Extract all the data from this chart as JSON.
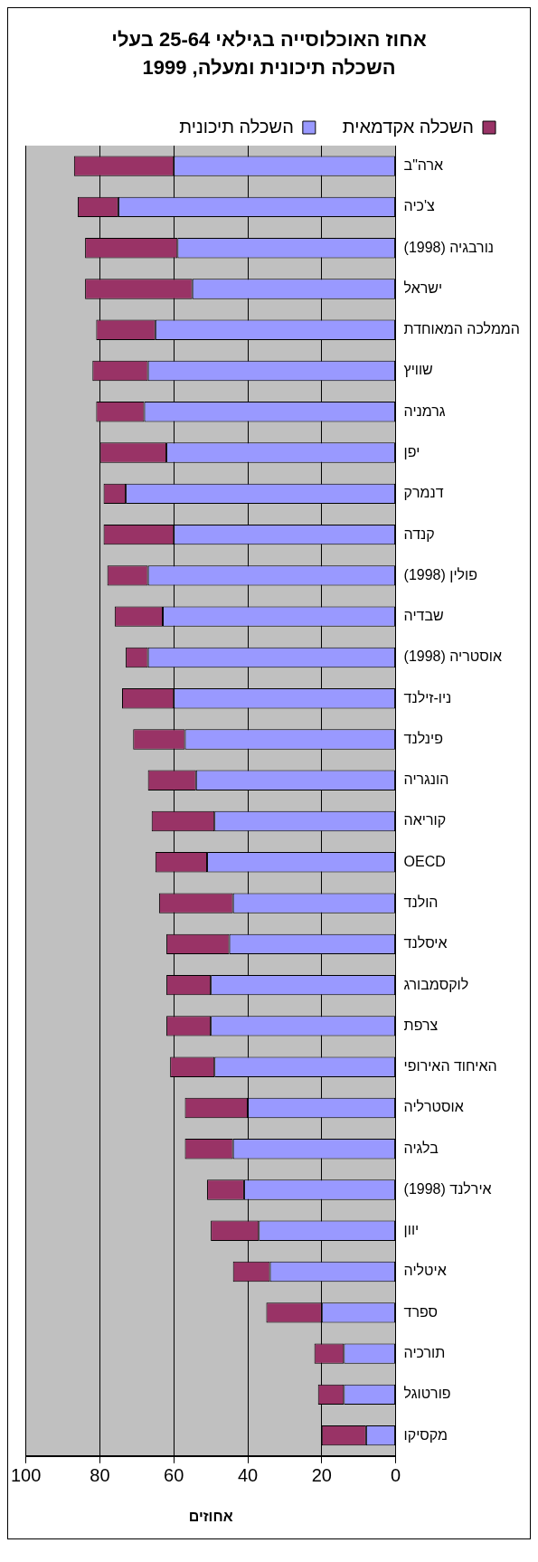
{
  "chart_data": {
    "type": "bar",
    "orientation": "horizontal",
    "stacked": true,
    "title": "אחוז האוכלוסייה בגילאי 25-64 בעלי השכלה תיכונית ומעלה, 1999",
    "xlabel": "אחוזים",
    "categories": [
      "ארה\"ב",
      "צ'כיה",
      "נורבגיה (1998)",
      "ישראל",
      "הממלכה המאוחדת",
      "שוויץ",
      "גרמניה",
      "יפן",
      "דנמרק",
      "קנדה",
      "פולין (1998)",
      "שבדיה",
      "אוסטריה (1998)",
      "ניו-זילנד",
      "פינלנד",
      "הונגריה",
      "קוריאה",
      "OECD",
      "הולנד",
      "איסלנד",
      "לוקסמבורג",
      "צרפת",
      "האיחוד האירופי",
      "אוסטרליה",
      "בלגיה",
      "אירלנד (1998)",
      "יוון",
      "איטליה",
      "ספרד",
      "תורכיה",
      "פורטוגל",
      "מקסיקו"
    ],
    "series": [
      {
        "name": "השכלה תיכונית",
        "color": "#9999ff",
        "values": [
          60,
          75,
          59,
          55,
          65,
          67,
          68,
          62,
          73,
          60,
          67,
          63,
          67,
          60,
          57,
          54,
          49,
          51,
          44,
          45,
          50,
          50,
          49,
          40,
          44,
          41,
          37,
          34,
          20,
          14,
          14,
          8
        ]
      },
      {
        "name": "השכלה אקדמאית",
        "color": "#993366",
        "values": [
          27,
          11,
          25,
          29,
          16,
          15,
          13,
          18,
          6,
          19,
          11,
          13,
          6,
          14,
          14,
          13,
          17,
          14,
          20,
          17,
          12,
          12,
          12,
          17,
          13,
          10,
          13,
          10,
          15,
          8,
          7,
          12
        ]
      }
    ],
    "xlim": [
      100,
      0
    ],
    "xticks": [
      100,
      80,
      60,
      40,
      20,
      0
    ],
    "grid": "x",
    "legend": "top"
  }
}
